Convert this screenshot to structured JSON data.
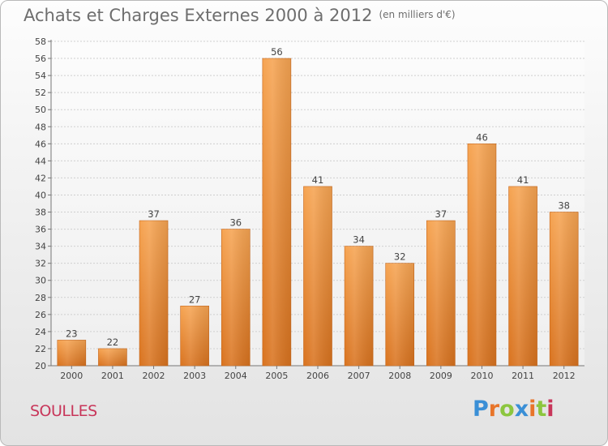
{
  "header": {
    "title": "Achats et Charges Externes 2000 à 2012",
    "subtitle": "(en milliers d'€)"
  },
  "place_name": "SOULLES",
  "brand": {
    "letters": [
      "P",
      "r",
      "o",
      "x",
      "i",
      "t",
      "i"
    ],
    "colors": [
      "#3a8fd6",
      "#e8752a",
      "#8cc63f",
      "#3a8fd6",
      "#e8752a",
      "#8cc63f",
      "#c8365a"
    ]
  },
  "chart_data": {
    "type": "bar",
    "categories": [
      "2000",
      "2001",
      "2002",
      "2003",
      "2004",
      "2005",
      "2006",
      "2007",
      "2008",
      "2009",
      "2010",
      "2011",
      "2012"
    ],
    "values": [
      23,
      22,
      37,
      27,
      36,
      56,
      41,
      34,
      32,
      37,
      46,
      41,
      38
    ],
    "ylim": [
      20,
      58
    ],
    "yticks": [
      20,
      22,
      24,
      26,
      28,
      30,
      32,
      34,
      36,
      38,
      40,
      42,
      44,
      46,
      48,
      50,
      52,
      54,
      56,
      58
    ],
    "grid": true,
    "bar_color_top": "#f6a452",
    "bar_color_bottom": "#d9731f"
  }
}
